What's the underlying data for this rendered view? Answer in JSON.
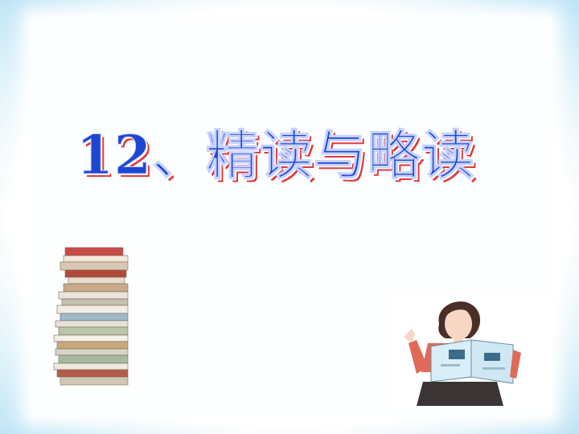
{
  "slide": {
    "title": "12、精读与略读",
    "colors": {
      "background_blue": "#c7e8f7",
      "title_blue": "#1d46d2",
      "title_shadow_red": "#e03a3a"
    },
    "images": {
      "books": "stack-of-books-illustration",
      "reader": "woman-reading-book-illustration"
    }
  }
}
